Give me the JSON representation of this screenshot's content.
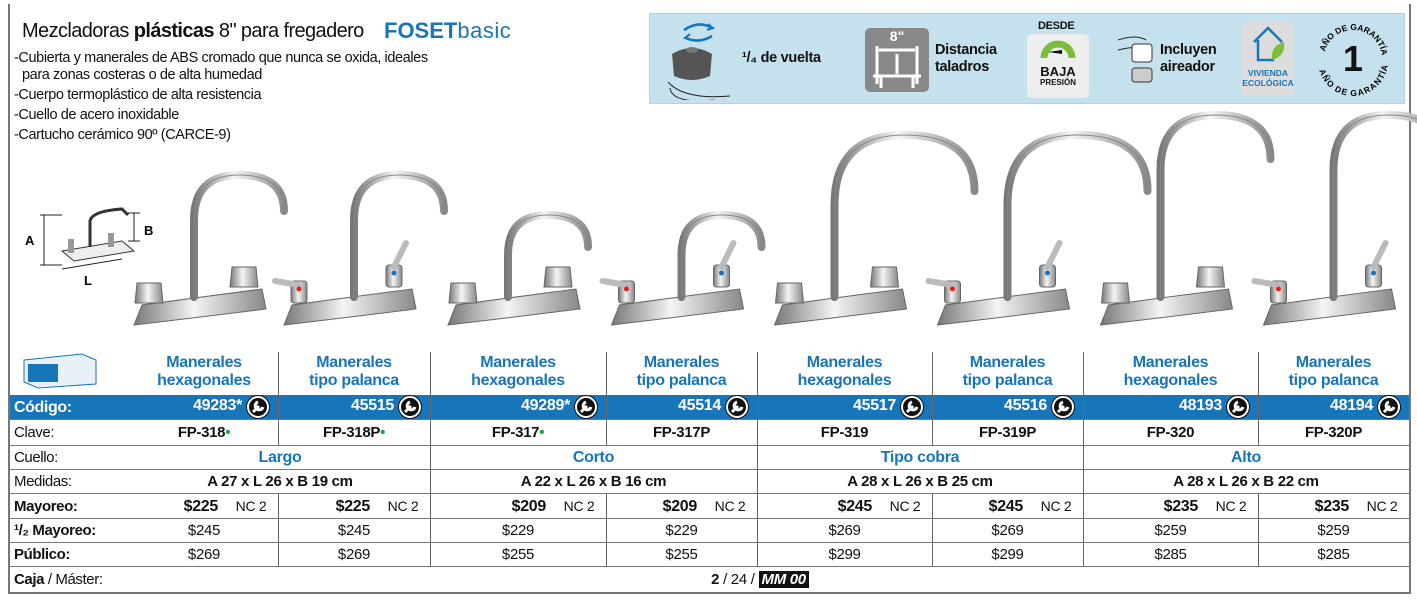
{
  "header": {
    "title_pre": "Mezcladoras ",
    "title_bold": "plásticas",
    "title_post": " 8\" para fregadero",
    "brand_bold": "FOSET",
    "brand_light": "basic"
  },
  "bullets": [
    "-Cubierta y manerales de ABS cromado que nunca se oxida, ideales para zonas costeras o de alta humedad",
    "-Cuerpo termoplástico de alta resistencia",
    "-Cuello de acero inoxidable",
    "-Cartucho cerámico 90º (CARCE-9)"
  ],
  "features": {
    "quarter_turn": "¹/₄ de vuelta",
    "drill_size": "8\"",
    "drill_label_1": "Distancia",
    "drill_label_2": "taladros",
    "pressure_top": "DESDE",
    "pressure_mid": "BAJA",
    "pressure_bottom": "PRESIÓN",
    "aerator_1": "Incluyen",
    "aerator_2": "aireador",
    "eco_1": "VIVIENDA",
    "eco_2": "ECOLÓGICA",
    "warranty_num": "1",
    "warranty_text": "AÑO DE GARANTÍA"
  },
  "diagram": {
    "a": "A",
    "b": "B",
    "l": "L"
  },
  "colors": {
    "accent": "#1775b9",
    "feature_bg": "#c6e1ee",
    "green_dot": "#1aa34a"
  },
  "labels": {
    "codigo": "Código:",
    "clave": "Clave:",
    "cuello": "Cuello:",
    "medidas": "Medidas:",
    "mayoreo": "Mayoreo:",
    "medio": "¹/₂ Mayoreo:",
    "publico": "Público:",
    "caja": "Caja",
    "master": " / Máster:"
  },
  "products": [
    {
      "type": "Manerales hexagonales",
      "codigo": "49283*",
      "clave": "FP-318",
      "eco": true,
      "mayoreo": "$225",
      "nc": "NC 2",
      "medio": "$245",
      "publico": "$269"
    },
    {
      "type": "Manerales tipo palanca",
      "codigo": "45515",
      "clave": "FP-318P",
      "eco": true,
      "mayoreo": "$225",
      "nc": "NC 2",
      "medio": "$245",
      "publico": "$269"
    },
    {
      "type": "Manerales hexagonales",
      "codigo": "49289*",
      "clave": "FP-317",
      "eco": true,
      "mayoreo": "$209",
      "nc": "NC 2",
      "medio": "$229",
      "publico": "$255"
    },
    {
      "type": "Manerales tipo palanca",
      "codigo": "45514",
      "clave": "FP-317P",
      "eco": false,
      "mayoreo": "$209",
      "nc": "NC 2",
      "medio": "$229",
      "publico": "$255"
    },
    {
      "type": "Manerales hexagonales",
      "codigo": "45517",
      "clave": "FP-319",
      "eco": false,
      "mayoreo": "$245",
      "nc": "NC 2",
      "medio": "$269",
      "publico": "$299"
    },
    {
      "type": "Manerales tipo palanca",
      "codigo": "45516",
      "clave": "FP-319P",
      "eco": false,
      "mayoreo": "$245",
      "nc": "NC 2",
      "medio": "$269",
      "publico": "$299"
    },
    {
      "type": "Manerales hexagonales",
      "codigo": "48193",
      "clave": "FP-320",
      "eco": false,
      "mayoreo": "$235",
      "nc": "NC 2",
      "medio": "$259",
      "publico": "$285"
    },
    {
      "type": "Manerales tipo palanca",
      "codigo": "48194",
      "clave": "FP-320P",
      "eco": false,
      "mayoreo": "$235",
      "nc": "NC 2",
      "medio": "$259",
      "publico": "$285"
    }
  ],
  "groups": [
    {
      "cuello": "Largo",
      "medidas": "A 27 x L 26 x B 19 cm"
    },
    {
      "cuello": "Corto",
      "medidas": "A 22 x L 26 x B 16 cm"
    },
    {
      "cuello": "Tipo cobra",
      "medidas": "A 28 x L 26 x B 25 cm"
    },
    {
      "cuello": "Alto",
      "medidas": "A 28 x L 26 x B 22 cm"
    }
  ],
  "caja": {
    "caja": "2",
    "master": " / 24 / ",
    "mm": "MM 00"
  }
}
